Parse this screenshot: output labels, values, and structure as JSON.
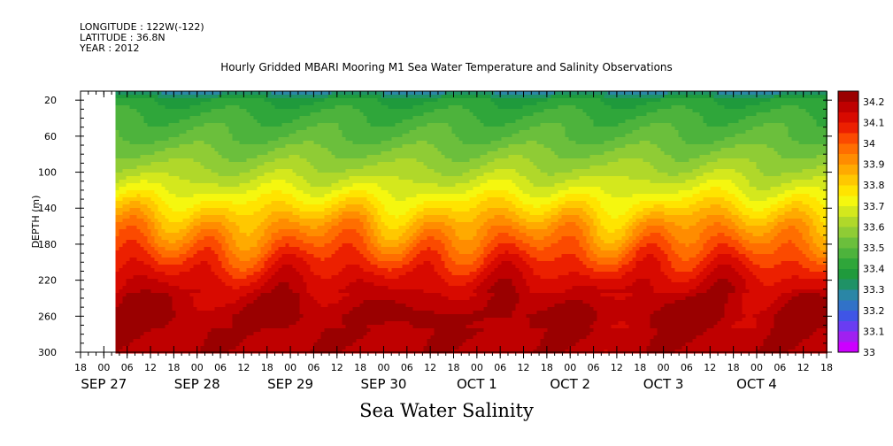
{
  "header": {
    "longitude": "LONGITUDE : 122W(-122)",
    "latitude": "LATITUDE : 36.8N",
    "year": "YEAR : 2012"
  },
  "figure_caption": "Sea Water Salinity",
  "chart_data": {
    "type": "heatmap",
    "title": "Hourly Gridded MBARI Mooring M1 Sea Water Temperature and Salinity Observations",
    "ylabel": "DEPTH (m)",
    "xlabel": "",
    "x_hour_ticks": [
      "18",
      "00",
      "06",
      "12",
      "18",
      "00",
      "06",
      "12",
      "18",
      "00",
      "06",
      "12",
      "18",
      "00",
      "06",
      "12",
      "18",
      "00",
      "06",
      "12",
      "18",
      "00",
      "06",
      "12",
      "18",
      "00",
      "06",
      "12",
      "18",
      "00",
      "06",
      "12",
      "18"
    ],
    "x_date_labels": [
      "SEP 27",
      "SEP 28",
      "SEP 29",
      "SEP 30",
      "OCT  1",
      "OCT  2",
      "OCT  3",
      "OCT  4"
    ],
    "x_range": [
      "2012-09-26T18:00",
      "2012-10-04T18:00"
    ],
    "data_start": "2012-09-27T03:00",
    "y_ticks": [
      20,
      60,
      100,
      140,
      180,
      220,
      260,
      300
    ],
    "ylim": [
      300,
      10
    ],
    "y_inverted": true,
    "colorbar": {
      "levels": [
        33,
        33.05,
        33.1,
        33.15,
        33.2,
        33.25,
        33.3,
        33.35,
        33.4,
        33.45,
        33.5,
        33.55,
        33.6,
        33.65,
        33.7,
        33.75,
        33.8,
        33.85,
        33.9,
        33.95,
        34,
        34.05,
        34.1,
        34.15,
        34.2,
        34.25
      ],
      "labels": [
        "33",
        "33.1",
        "33.2",
        "33.3",
        "33.4",
        "33.5",
        "33.6",
        "33.7",
        "33.8",
        "33.9",
        "34",
        "34.1",
        "34.2"
      ],
      "colors": [
        "#cc00ff",
        "#a020f0",
        "#6a3cf2",
        "#3f55e6",
        "#3172c8",
        "#2a86a6",
        "#1f9266",
        "#1f9a3c",
        "#2fa63a",
        "#4db33c",
        "#6bbf3c",
        "#8fcc35",
        "#b0d82a",
        "#d4e81d",
        "#f5f70f",
        "#ffe400",
        "#ffc800",
        "#ffaa00",
        "#ff8c00",
        "#ff6e00",
        "#fb4a00",
        "#ec2000",
        "#d80a00",
        "#bf0000",
        "#9a0000"
      ]
    },
    "depth_profile": [
      {
        "depth": 10,
        "salinity": 33.27
      },
      {
        "depth": 20,
        "salinity": 33.4
      },
      {
        "depth": 40,
        "salinity": 33.46
      },
      {
        "depth": 60,
        "salinity": 33.5
      },
      {
        "depth": 80,
        "salinity": 33.56
      },
      {
        "depth": 100,
        "salinity": 33.62
      },
      {
        "depth": 120,
        "salinity": 33.7
      },
      {
        "depth": 140,
        "salinity": 33.8
      },
      {
        "depth": 160,
        "salinity": 33.9
      },
      {
        "depth": 180,
        "salinity": 33.98
      },
      {
        "depth": 200,
        "salinity": 34.06
      },
      {
        "depth": 220,
        "salinity": 34.13
      },
      {
        "depth": 240,
        "salinity": 34.18
      },
      {
        "depth": 260,
        "salinity": 34.21
      },
      {
        "depth": 280,
        "salinity": 34.19
      },
      {
        "depth": 300,
        "salinity": 34.18
      }
    ]
  }
}
